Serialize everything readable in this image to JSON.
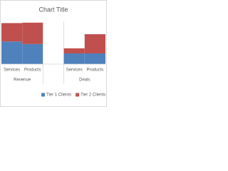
{
  "chart_data": {
    "type": "stacked_bar",
    "title": "Chart Title",
    "groups": [
      {
        "name": "Revenue",
        "categories": [
          "Services",
          "Products"
        ]
      },
      {
        "name": "Deals",
        "categories": [
          "Services",
          "Products"
        ]
      }
    ],
    "series": [
      {
        "name": "Tier 1 Clients",
        "color": "#4f81bd",
        "values": [
          53,
          47,
          25,
          25
        ]
      },
      {
        "name": "Tier 2 Clients",
        "color": "#c0504d",
        "values": [
          43,
          50,
          12,
          45
        ]
      }
    ],
    "ylim": [
      0,
      100
    ],
    "legend": "bottom"
  }
}
